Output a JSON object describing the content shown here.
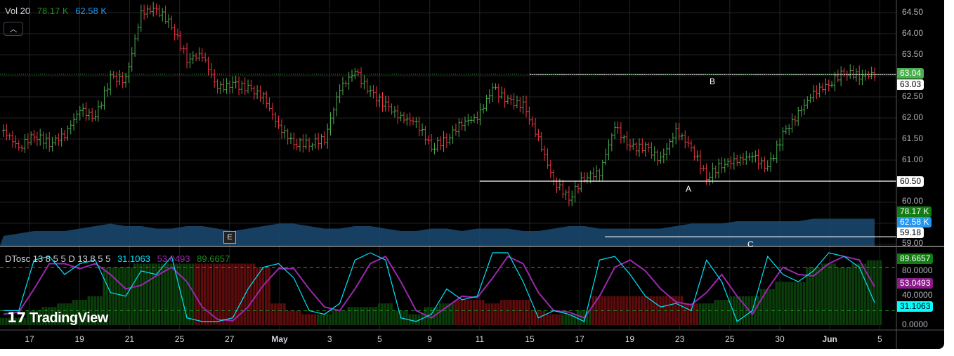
{
  "legend": {
    "volume_title": "Vol 20",
    "volume_value": "78.17 K",
    "volume_ma_value": "62.58 K",
    "collapse_icon": "chevron-up-icon",
    "osc_title": "DTosc 13 8 5 5 D 13 8 5 5",
    "osc_fast": "31.1063",
    "osc_slow": "53.0493",
    "osc_hist": "89.6657"
  },
  "colors": {
    "up": "#4caf50",
    "down": "#f23645",
    "volume_ma": "#2962ff",
    "fast": "#00e5ff",
    "slow": "#9c27b0",
    "hist_up": "#0b3d0b",
    "hist_down": "#5c0c0c",
    "last_price": "#4caf50"
  },
  "price_axis": {
    "ticks": [
      "64.50",
      "64.00",
      "63.50",
      "62.50",
      "62.00",
      "61.50",
      "61.00",
      "60.00",
      "59.00"
    ]
  },
  "price_tags": {
    "last": "63.04",
    "line_b": "63.03",
    "line_a": "60.50",
    "volume": "78.17 K",
    "volume_ma": "62.58 K",
    "line_c": "59.18"
  },
  "osc_axis": {
    "ticks": [
      "80.0000",
      "40.0000",
      "0.0000"
    ],
    "tags": {
      "hist": "89.6657",
      "slow": "53.0493",
      "fast": "31.1063"
    }
  },
  "lines": [
    {
      "label": "B",
      "price": 63.03,
      "start_tick": "15"
    },
    {
      "label": "A",
      "price": 60.5,
      "start_tick": "11"
    },
    {
      "label": "C",
      "price": 59.18,
      "start_tick": "18"
    }
  ],
  "earnings_badge": "E",
  "logo": "TradingView",
  "chart_data": {
    "type": "ohlc",
    "time_ticks": [
      "17",
      "19",
      "21",
      "25",
      "27",
      "May",
      "3",
      "5",
      "9",
      "11",
      "15",
      "17",
      "19",
      "23",
      "25",
      "30",
      "Jun",
      "5"
    ],
    "price_range": [
      59.0,
      64.8
    ],
    "closes": [
      61.7,
      61.3,
      61.6,
      61.4,
      61.6,
      62.2,
      62.0,
      62.95,
      62.9,
      64.5,
      64.6,
      64.2,
      63.4,
      63.5,
      62.7,
      62.8,
      62.7,
      62.5,
      61.8,
      61.4,
      61.4,
      61.5,
      62.7,
      63.1,
      62.6,
      62.3,
      62.0,
      61.9,
      61.3,
      61.5,
      61.9,
      62.0,
      62.7,
      62.4,
      62.3,
      61.5,
      60.5,
      60.1,
      60.6,
      60.7,
      61.8,
      61.3,
      61.3,
      61.0,
      61.7,
      61.3,
      60.6,
      60.9,
      61.0,
      61.1,
      60.8,
      61.6,
      62.1,
      62.6,
      62.8,
      63.1,
      63.0,
      63.04
    ],
    "oscillator": {
      "range": [
        0,
        100
      ],
      "levels": [
        80,
        40
      ],
      "fast": [
        20,
        20,
        90,
        95,
        70,
        85,
        90,
        45,
        40,
        75,
        70,
        95,
        10,
        5,
        5,
        10,
        50,
        80,
        85,
        65,
        20,
        15,
        30,
        90,
        100,
        90,
        10,
        5,
        15,
        50,
        35,
        40,
        100,
        100,
        60,
        10,
        20,
        15,
        5,
        90,
        95,
        70,
        40,
        25,
        30,
        20,
        90,
        60,
        5,
        20,
        95,
        70,
        60,
        75,
        100,
        95,
        80,
        31.1
      ],
      "slow": [
        15,
        18,
        50,
        85,
        85,
        78,
        85,
        70,
        50,
        55,
        68,
        80,
        60,
        25,
        8,
        6,
        25,
        55,
        78,
        78,
        50,
        25,
        20,
        50,
        85,
        95,
        60,
        20,
        10,
        25,
        40,
        38,
        65,
        95,
        85,
        45,
        20,
        18,
        10,
        40,
        80,
        90,
        75,
        50,
        32,
        28,
        45,
        70,
        40,
        15,
        50,
        80,
        70,
        68,
        85,
        95,
        90,
        53.0
      ],
      "histogram": [
        10,
        10,
        20,
        25,
        30,
        35,
        40,
        80,
        80,
        85,
        85,
        85,
        85,
        -85,
        -85,
        -85,
        -85,
        -80,
        -30,
        -20,
        -15,
        15,
        20,
        25,
        25,
        30,
        20,
        15,
        25,
        30,
        -35,
        -35,
        -30,
        -35,
        -35,
        -20,
        -15,
        15,
        20,
        -40,
        -40,
        -40,
        -40,
        -40,
        -40,
        -30,
        30,
        35,
        40,
        40,
        50,
        60,
        60,
        80,
        85,
        80,
        85,
        89.7
      ]
    },
    "volume_ma": [
      0.2,
      0.25,
      0.3,
      0.3,
      0.3,
      0.35,
      0.4,
      0.45,
      0.4,
      0.4,
      0.35,
      0.35,
      0.4,
      0.4,
      0.35,
      0.3,
      0.35,
      0.4,
      0.45,
      0.45,
      0.4,
      0.35,
      0.35,
      0.4,
      0.4,
      0.35,
      0.3,
      0.3,
      0.35,
      0.35,
      0.3,
      0.35,
      0.35,
      0.35,
      0.3,
      0.3,
      0.35,
      0.4,
      0.4,
      0.35,
      0.35,
      0.35,
      0.35,
      0.35,
      0.4,
      0.45,
      0.45,
      0.45,
      0.5,
      0.5,
      0.5,
      0.5,
      0.5,
      0.55,
      0.55,
      0.55,
      0.55,
      0.55
    ]
  }
}
